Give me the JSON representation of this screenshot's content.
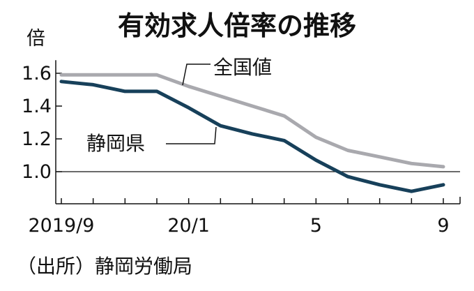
{
  "chart_data": {
    "type": "line",
    "title": "有効求人倍率の推移",
    "unit": "倍",
    "source": "（出所）静岡労働局",
    "x": [
      "2019/9",
      "2019/10",
      "2019/11",
      "2019/12",
      "2020/1",
      "2020/2",
      "2020/3",
      "2020/4",
      "2020/5",
      "2020/6",
      "2020/7",
      "2020/8",
      "2020/9"
    ],
    "x_tick_labels": [
      {
        "index": 0,
        "label": "2019/9"
      },
      {
        "index": 4,
        "label": "20/1"
      },
      {
        "index": 8,
        "label": "5"
      },
      {
        "index": 12,
        "label": "9"
      }
    ],
    "y_ticks": [
      "1.0",
      "1.2",
      "1.4",
      "1.6"
    ],
    "ylim": [
      0.82,
      1.68
    ],
    "reference_line": 1.0,
    "series": [
      {
        "name": "全国値",
        "color": "#a9a9ae",
        "values": [
          1.59,
          1.59,
          1.59,
          1.59,
          1.52,
          1.46,
          1.4,
          1.34,
          1.21,
          1.13,
          1.09,
          1.05,
          1.03
        ]
      },
      {
        "name": "静岡県",
        "color": "#17405a",
        "values": [
          1.55,
          1.53,
          1.49,
          1.49,
          1.39,
          1.28,
          1.23,
          1.19,
          1.07,
          0.97,
          0.92,
          0.88,
          0.92
        ]
      }
    ]
  }
}
